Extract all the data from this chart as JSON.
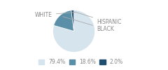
{
  "slices": [
    79.4,
    18.6,
    2.0
  ],
  "slice_order": [
    "WHITE",
    "BLACK",
    "HISPANIC"
  ],
  "colors": [
    "#d6e4ee",
    "#5b8fa8",
    "#1f4e6e"
  ],
  "legend_labels": [
    "79.4%",
    "18.6%",
    "2.0%"
  ],
  "startangle": 90,
  "background": "#ffffff",
  "label_color": "#888888",
  "text_fontsize": 5.5
}
